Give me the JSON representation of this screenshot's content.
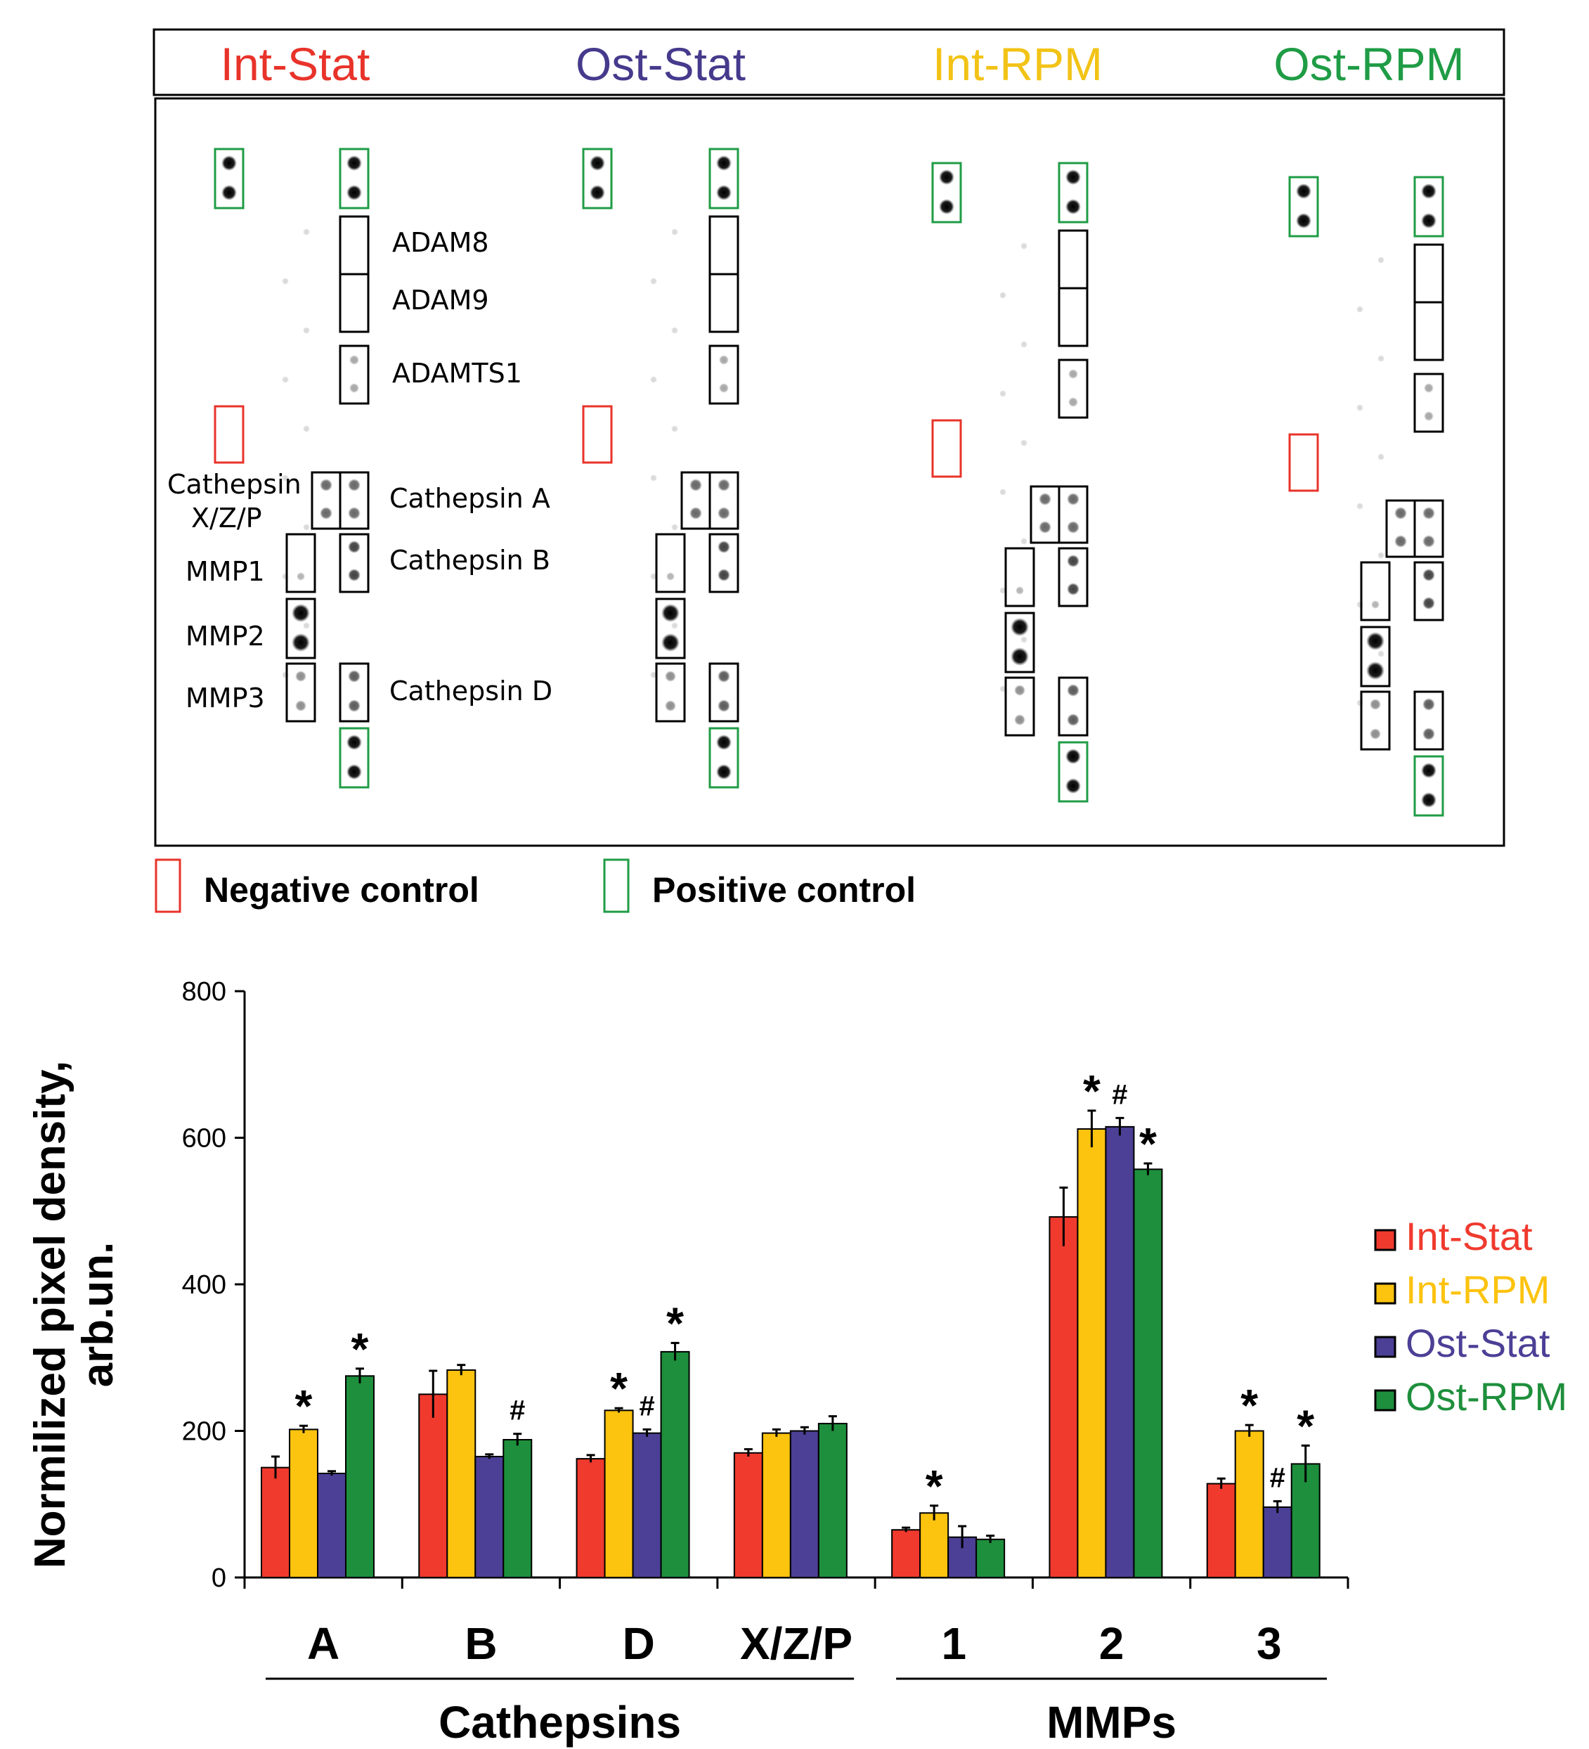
{
  "blot": {
    "headers": [
      {
        "label": "Int-Stat",
        "color": "#e8332a"
      },
      {
        "label": "Ost-Stat",
        "color": "#453a8c"
      },
      {
        "label": "Int-RPM",
        "color": "#f2c316"
      },
      {
        "label": "Ost-RPM",
        "color": "#1f9c45"
      }
    ],
    "spot_labels": {
      "adam8": "ADAM8",
      "adam9": "ADAM9",
      "adamts1": "ADAMTS1",
      "cathepsin_a": "Cathepsin A",
      "cathepsin_xzp_1": "Cathepsin",
      "cathepsin_xzp_2": "X/Z/P",
      "cathepsin_b": "Cathepsin B",
      "mmp1": "MMP1",
      "mmp2": "MMP2",
      "mmp3": "MMP3",
      "cathepsin_d": "Cathepsin D"
    },
    "legend": {
      "negative": "Negative control",
      "positive": "Positive control",
      "negative_color": "#e8332a",
      "positive_color": "#1f9c45"
    }
  },
  "chart_data": {
    "type": "bar",
    "ylabel_line1": "Normilized pixel density,",
    "ylabel_line2": "arb.un.",
    "ylim": [
      0,
      800
    ],
    "yticks": [
      0,
      200,
      400,
      600,
      800
    ],
    "categories": [
      "A",
      "B",
      "D",
      "X/Z/P",
      "1",
      "2",
      "3"
    ],
    "groups": [
      {
        "label": "Cathepsins",
        "from": 0,
        "to": 3
      },
      {
        "label": "MMPs",
        "from": 4,
        "to": 6
      }
    ],
    "series": [
      {
        "name": "Int-Stat",
        "color": "#f03a2e",
        "values": [
          150,
          250,
          162,
          170,
          65,
          492,
          128
        ],
        "errors": [
          15,
          32,
          5,
          5,
          3,
          40,
          7
        ]
      },
      {
        "name": "Int-RPM",
        "color": "#fcc30f",
        "values": [
          202,
          283,
          228,
          197,
          88,
          612,
          200
        ],
        "errors": [
          5,
          7,
          3,
          5,
          10,
          25,
          8
        ]
      },
      {
        "name": "Ost-Stat",
        "color": "#4b3f96",
        "values": [
          142,
          165,
          197,
          200,
          55,
          615,
          96
        ],
        "errors": [
          3,
          3,
          5,
          5,
          15,
          12,
          8
        ]
      },
      {
        "name": "Ost-RPM",
        "color": "#1e8f3c",
        "values": [
          275,
          188,
          308,
          210,
          52,
          557,
          155
        ],
        "errors": [
          10,
          8,
          12,
          10,
          5,
          8,
          25
        ]
      }
    ],
    "annotations": [
      {
        "category": 0,
        "series": 1,
        "text": "*"
      },
      {
        "category": 0,
        "series": 3,
        "text": "*"
      },
      {
        "category": 1,
        "series": 3,
        "text": "#"
      },
      {
        "category": 2,
        "series": 1,
        "text": "*"
      },
      {
        "category": 2,
        "series": 2,
        "text": "#"
      },
      {
        "category": 2,
        "series": 3,
        "text": "*"
      },
      {
        "category": 4,
        "series": 1,
        "text": "*"
      },
      {
        "category": 5,
        "series": 1,
        "text": "*"
      },
      {
        "category": 5,
        "series": 2,
        "text": "#"
      },
      {
        "category": 5,
        "series": 3,
        "text": "*"
      },
      {
        "category": 6,
        "series": 1,
        "text": "*"
      },
      {
        "category": 6,
        "series": 2,
        "text": "#"
      },
      {
        "category": 6,
        "series": 3,
        "text": "*"
      }
    ],
    "legend_position": "right"
  }
}
